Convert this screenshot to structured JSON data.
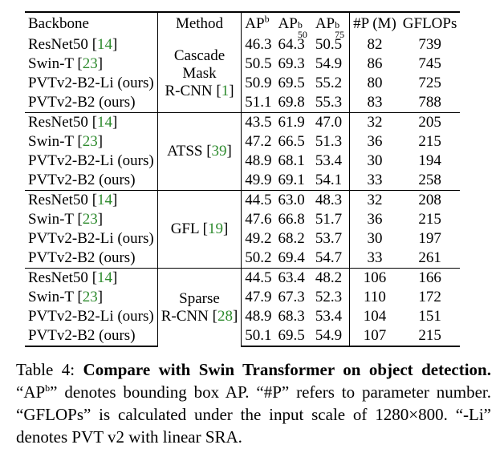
{
  "table": {
    "headers": {
      "backbone": "Backbone",
      "method": "Method",
      "ap": "AP",
      "ap_sup": "b",
      "ap50": "AP",
      "ap50_sup": "b",
      "ap50_sub": "50",
      "ap75": "AP",
      "ap75_sup": "b",
      "ap75_sub": "75",
      "params": "#P (M)",
      "gflops": "GFLOPs"
    },
    "groups": [
      {
        "method": [
          "Cascade",
          "Mask",
          "R-CNN [",
          "1",
          "]"
        ],
        "rows": [
          {
            "backbone": "ResNet50",
            "ref": "14",
            "ap": "46.3",
            "ap50": "64.3",
            "ap75": "50.5",
            "params": "82",
            "gflops": "739"
          },
          {
            "backbone": "Swin-T",
            "ref": "23",
            "ap": "50.5",
            "ap50": "69.3",
            "ap75": "54.9",
            "params": "86",
            "gflops": "745"
          },
          {
            "backbone": "PVTv2-B2-Li (ours)",
            "ref": "",
            "ap": "50.9",
            "ap50": "69.5",
            "ap75": "55.2",
            "params": "80",
            "gflops": "725"
          },
          {
            "backbone": "PVTv2-B2 (ours)",
            "ref": "",
            "ap": "51.1",
            "ap50": "69.8",
            "ap75": "55.3",
            "params": "83",
            "gflops": "788"
          }
        ]
      },
      {
        "method": [
          "ATSS [",
          "39",
          "]"
        ],
        "rows": [
          {
            "backbone": "ResNet50",
            "ref": "14",
            "ap": "43.5",
            "ap50": "61.9",
            "ap75": "47.0",
            "params": "32",
            "gflops": "205"
          },
          {
            "backbone": "Swin-T",
            "ref": "23",
            "ap": "47.2",
            "ap50": "66.5",
            "ap75": "51.3",
            "params": "36",
            "gflops": "215"
          },
          {
            "backbone": "PVTv2-B2-Li (ours)",
            "ref": "",
            "ap": "48.9",
            "ap50": "68.1",
            "ap75": "53.4",
            "params": "30",
            "gflops": "194"
          },
          {
            "backbone": "PVTv2-B2 (ours)",
            "ref": "",
            "ap": "49.9",
            "ap50": "69.1",
            "ap75": "54.1",
            "params": "33",
            "gflops": "258"
          }
        ]
      },
      {
        "method": [
          "GFL [",
          "19",
          "]"
        ],
        "rows": [
          {
            "backbone": "ResNet50",
            "ref": "14",
            "ap": "44.5",
            "ap50": "63.0",
            "ap75": "48.3",
            "params": "32",
            "gflops": "208"
          },
          {
            "backbone": "Swin-T",
            "ref": "23",
            "ap": "47.6",
            "ap50": "66.8",
            "ap75": "51.7",
            "params": "36",
            "gflops": "215"
          },
          {
            "backbone": "PVTv2-B2-Li (ours)",
            "ref": "",
            "ap": "49.2",
            "ap50": "68.2",
            "ap75": "53.7",
            "params": "30",
            "gflops": "197"
          },
          {
            "backbone": "PVTv2-B2 (ours)",
            "ref": "",
            "ap": "50.2",
            "ap50": "69.4",
            "ap75": "54.7",
            "params": "33",
            "gflops": "261"
          }
        ]
      },
      {
        "method": [
          "Sparse",
          "R-CNN [",
          "28",
          "]"
        ],
        "rows": [
          {
            "backbone": "ResNet50",
            "ref": "14",
            "ap": "44.5",
            "ap50": "63.4",
            "ap75": "48.2",
            "params": "106",
            "gflops": "166"
          },
          {
            "backbone": "Swin-T",
            "ref": "23",
            "ap": "47.9",
            "ap50": "67.3",
            "ap75": "52.3",
            "params": "110",
            "gflops": "172"
          },
          {
            "backbone": "PVTv2-B2-Li (ours)",
            "ref": "",
            "ap": "48.9",
            "ap50": "68.3",
            "ap75": "53.4",
            "params": "104",
            "gflops": "151"
          },
          {
            "backbone": "PVTv2-B2 (ours)",
            "ref": "",
            "ap": "50.1",
            "ap50": "69.5",
            "ap75": "54.9",
            "params": "107",
            "gflops": "215"
          }
        ]
      }
    ]
  },
  "caption": {
    "label": "Table 4:",
    "bold": "Compare with Swin Transformer on object detection.",
    "text1": "“AP",
    "text1_sup": "b",
    "text2": "” denotes bounding box AP. “#P” refers to parameter number. “GFLOPs” is calculated under the input scale of 1280×800. “-Li” denotes PVT v2 with linear SRA."
  },
  "colors": {
    "citation": "#2e8b2e",
    "text": "#000000"
  }
}
